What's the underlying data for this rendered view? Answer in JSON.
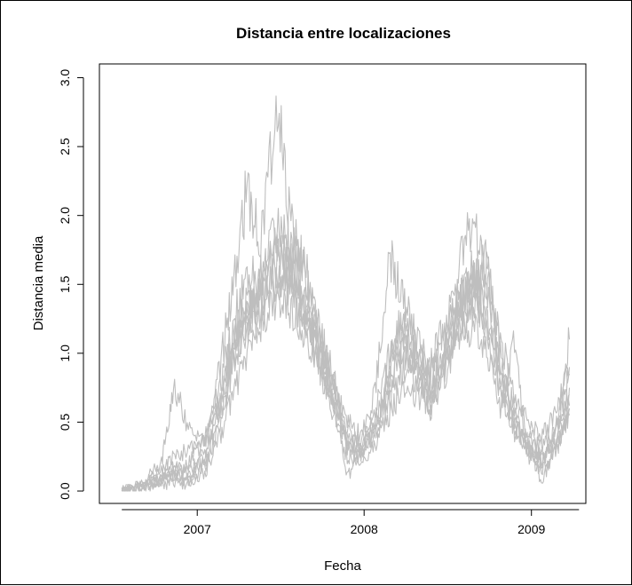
{
  "chart_data": {
    "type": "line",
    "title": "Distancia entre localizaciones",
    "xlabel": "Fecha",
    "ylabel": "Distancia media",
    "x_ticks": [
      "2007",
      "2008",
      "2009"
    ],
    "y_ticks": [
      "0.0",
      "0.5",
      "1.0",
      "1.5",
      "2.0",
      "2.5",
      "3.0"
    ],
    "xlim": [
      "2006-06-01",
      "2009-04-30"
    ],
    "ylim": [
      -0.09,
      3.1
    ],
    "grid": false,
    "line_color": "#bebebe",
    "series": [
      {
        "dates": [
          "2006-07-20",
          "2006-09-01",
          "2006-10-15",
          "2006-11-10",
          "2006-12-15",
          "2007-01-20",
          "2007-02-20",
          "2007-03-20",
          "2007-04-20",
          "2007-05-20",
          "2007-06-25",
          "2007-07-25",
          "2007-08-25",
          "2007-09-25",
          "2007-10-25",
          "2007-11-25",
          "2007-12-25",
          "2008-01-25",
          "2008-02-25",
          "2008-03-25",
          "2008-04-25",
          "2008-05-25",
          "2008-06-25",
          "2008-07-25",
          "2008-08-25",
          "2008-09-25",
          "2008-10-25",
          "2008-11-25",
          "2008-12-25",
          "2009-01-25",
          "2009-02-25",
          "2009-03-25"
        ],
        "values": [
          0.0,
          0.03,
          0.08,
          0.12,
          0.1,
          0.25,
          0.7,
          1.1,
          1.35,
          1.55,
          1.65,
          1.5,
          1.3,
          1.05,
          0.7,
          0.45,
          0.35,
          0.5,
          0.8,
          1.0,
          0.9,
          0.85,
          1.1,
          1.35,
          1.55,
          1.25,
          0.85,
          0.6,
          0.4,
          0.3,
          0.45,
          0.7
        ]
      },
      {
        "dates": [
          "2006-07-20",
          "2006-09-01",
          "2006-10-15",
          "2006-11-10",
          "2006-12-15",
          "2007-01-20",
          "2007-02-20",
          "2007-03-20",
          "2007-04-20",
          "2007-05-20",
          "2007-06-25",
          "2007-07-25",
          "2007-08-25",
          "2007-09-25",
          "2007-10-25",
          "2007-11-25",
          "2007-12-25",
          "2008-01-25",
          "2008-02-25",
          "2008-03-25",
          "2008-04-25",
          "2008-05-25",
          "2008-06-25",
          "2008-07-25",
          "2008-08-25",
          "2008-09-25",
          "2008-10-25",
          "2008-11-25",
          "2008-12-25",
          "2009-01-25",
          "2009-02-25",
          "2009-03-25"
        ],
        "values": [
          0.0,
          0.05,
          0.2,
          0.78,
          0.45,
          0.35,
          0.9,
          1.5,
          2.2,
          1.8,
          2.85,
          1.9,
          1.6,
          1.2,
          0.8,
          0.5,
          0.4,
          0.7,
          1.7,
          1.4,
          1.1,
          0.9,
          1.2,
          1.6,
          2.0,
          1.5,
          1.1,
          0.7,
          0.5,
          0.4,
          0.6,
          0.9
        ]
      },
      {
        "dates": [
          "2006-07-20",
          "2006-09-01",
          "2006-10-15",
          "2006-11-10",
          "2006-12-15",
          "2007-01-20",
          "2007-02-20",
          "2007-03-20",
          "2007-04-20",
          "2007-05-20",
          "2007-06-25",
          "2007-07-25",
          "2007-08-25",
          "2007-09-25",
          "2007-10-25",
          "2007-11-25",
          "2007-12-25",
          "2008-01-25",
          "2008-02-25",
          "2008-03-25",
          "2008-04-25",
          "2008-05-25",
          "2008-06-25",
          "2008-07-25",
          "2008-08-25",
          "2008-09-25",
          "2008-10-25",
          "2008-11-25",
          "2008-12-25",
          "2009-01-25",
          "2009-02-25",
          "2009-03-25"
        ],
        "values": [
          0.0,
          0.02,
          0.1,
          0.15,
          0.2,
          0.4,
          0.8,
          1.2,
          1.6,
          1.45,
          1.95,
          1.8,
          1.55,
          1.1,
          0.85,
          0.3,
          0.25,
          0.55,
          1.0,
          1.2,
          0.95,
          0.6,
          0.9,
          1.2,
          1.3,
          1.7,
          1.0,
          0.4,
          0.3,
          0.2,
          0.5,
          1.1
        ]
      },
      {
        "dates": [
          "2006-07-20",
          "2006-09-01",
          "2006-10-15",
          "2006-11-10",
          "2006-12-15",
          "2007-01-20",
          "2007-02-20",
          "2007-03-20",
          "2007-04-20",
          "2007-05-20",
          "2007-06-25",
          "2007-07-25",
          "2007-08-25",
          "2007-09-25",
          "2007-10-25",
          "2007-11-25",
          "2007-12-25",
          "2008-01-25",
          "2008-02-25",
          "2008-03-25",
          "2008-04-25",
          "2008-05-25",
          "2008-06-25",
          "2008-07-25",
          "2008-08-25",
          "2008-09-25",
          "2008-10-25",
          "2008-11-25",
          "2008-12-25",
          "2009-01-25",
          "2009-02-25",
          "2009-03-25"
        ],
        "values": [
          0.0,
          0.04,
          0.12,
          0.1,
          0.08,
          0.2,
          0.5,
          0.9,
          1.3,
          1.4,
          1.5,
          1.7,
          1.4,
          1.0,
          0.6,
          0.35,
          0.3,
          0.4,
          0.65,
          0.9,
          0.8,
          0.7,
          1.0,
          1.3,
          1.4,
          1.1,
          0.7,
          0.5,
          0.3,
          0.25,
          0.35,
          0.55
        ]
      },
      {
        "dates": [
          "2006-07-20",
          "2006-09-01",
          "2006-10-15",
          "2006-11-10",
          "2006-12-15",
          "2007-01-20",
          "2007-02-20",
          "2007-03-20",
          "2007-04-20",
          "2007-05-20",
          "2007-06-25",
          "2007-07-25",
          "2007-08-25",
          "2007-09-25",
          "2007-10-25",
          "2007-11-25",
          "2007-12-25",
          "2008-01-25",
          "2008-02-25",
          "2008-03-25",
          "2008-04-25",
          "2008-05-25",
          "2008-06-25",
          "2008-07-25",
          "2008-08-25",
          "2008-09-25",
          "2008-10-25",
          "2008-11-25",
          "2008-12-25",
          "2009-01-25",
          "2009-02-25",
          "2009-03-25"
        ],
        "values": [
          0.0,
          0.01,
          0.05,
          0.06,
          0.05,
          0.15,
          0.4,
          0.7,
          1.0,
          1.2,
          1.4,
          1.3,
          1.2,
          0.9,
          0.55,
          0.25,
          0.2,
          0.35,
          0.55,
          0.75,
          0.7,
          0.6,
          0.85,
          1.15,
          1.2,
          1.0,
          0.6,
          1.08,
          0.25,
          0.15,
          0.3,
          0.6
        ]
      },
      {
        "dates": [
          "2006-07-20",
          "2006-09-01",
          "2006-10-15",
          "2006-11-10",
          "2006-12-15",
          "2007-01-20",
          "2007-02-20",
          "2007-03-20",
          "2007-04-20",
          "2007-05-20",
          "2007-06-25",
          "2007-07-25",
          "2007-08-25",
          "2007-09-25",
          "2007-10-25",
          "2007-11-25",
          "2007-12-25",
          "2008-01-25",
          "2008-02-25",
          "2008-03-25",
          "2008-04-25",
          "2008-05-25",
          "2008-06-25",
          "2008-07-25",
          "2008-08-25",
          "2008-09-25",
          "2008-10-25",
          "2008-11-25",
          "2008-12-25",
          "2009-01-25",
          "2009-02-25",
          "2009-03-25"
        ],
        "values": [
          0.0,
          0.03,
          0.15,
          0.25,
          0.3,
          0.38,
          0.6,
          1.0,
          1.2,
          1.3,
          1.6,
          1.45,
          1.1,
          0.95,
          0.75,
          0.4,
          0.3,
          0.45,
          0.9,
          1.3,
          1.0,
          0.8,
          1.0,
          1.3,
          1.6,
          1.4,
          0.9,
          0.55,
          0.35,
          0.25,
          0.4,
          0.75
        ]
      },
      {
        "dates": [
          "2006-07-20",
          "2006-09-01",
          "2006-10-15",
          "2006-11-10",
          "2006-12-15",
          "2007-01-20",
          "2007-02-20",
          "2007-03-20",
          "2007-04-20",
          "2007-05-20",
          "2007-06-25",
          "2007-07-25",
          "2007-08-25",
          "2007-09-25",
          "2007-10-25",
          "2007-11-25",
          "2007-12-25",
          "2008-01-25",
          "2008-02-25",
          "2008-03-25",
          "2008-04-25",
          "2008-05-25",
          "2008-06-25",
          "2008-07-25",
          "2008-08-25",
          "2008-09-25",
          "2008-10-25",
          "2008-11-25",
          "2008-12-25",
          "2009-01-25",
          "2009-02-25",
          "2009-03-25"
        ],
        "values": [
          0.0,
          0.02,
          0.08,
          0.12,
          0.12,
          0.22,
          0.55,
          0.95,
          1.25,
          1.45,
          1.75,
          1.6,
          1.35,
          1.15,
          0.7,
          0.35,
          0.28,
          0.42,
          0.75,
          1.1,
          0.85,
          0.65,
          0.95,
          1.25,
          1.45,
          1.75,
          0.8,
          0.5,
          0.3,
          0.22,
          0.38,
          0.62
        ]
      },
      {
        "dates": [
          "2006-07-20",
          "2006-09-01",
          "2006-10-15",
          "2006-11-10",
          "2006-12-15",
          "2007-01-20",
          "2007-02-20",
          "2007-03-20",
          "2007-04-20",
          "2007-05-20",
          "2007-06-25",
          "2007-07-25",
          "2007-08-25",
          "2007-09-25",
          "2007-10-25",
          "2007-11-25",
          "2007-12-25",
          "2008-01-25",
          "2008-02-25",
          "2008-03-25",
          "2008-04-25",
          "2008-05-25",
          "2008-06-25",
          "2008-07-25",
          "2008-08-25",
          "2008-09-25",
          "2008-10-25",
          "2008-11-25",
          "2008-12-25",
          "2009-01-25",
          "2009-02-25",
          "2009-03-25"
        ],
        "values": [
          0.0,
          0.04,
          0.14,
          0.18,
          0.14,
          0.28,
          0.65,
          1.05,
          1.4,
          1.35,
          1.85,
          1.55,
          1.25,
          1.0,
          0.65,
          0.1,
          0.3,
          0.48,
          0.85,
          1.15,
          0.95,
          0.75,
          1.05,
          1.4,
          1.5,
          1.2,
          0.75,
          0.45,
          0.35,
          0.05,
          0.42,
          0.85
        ]
      }
    ]
  }
}
